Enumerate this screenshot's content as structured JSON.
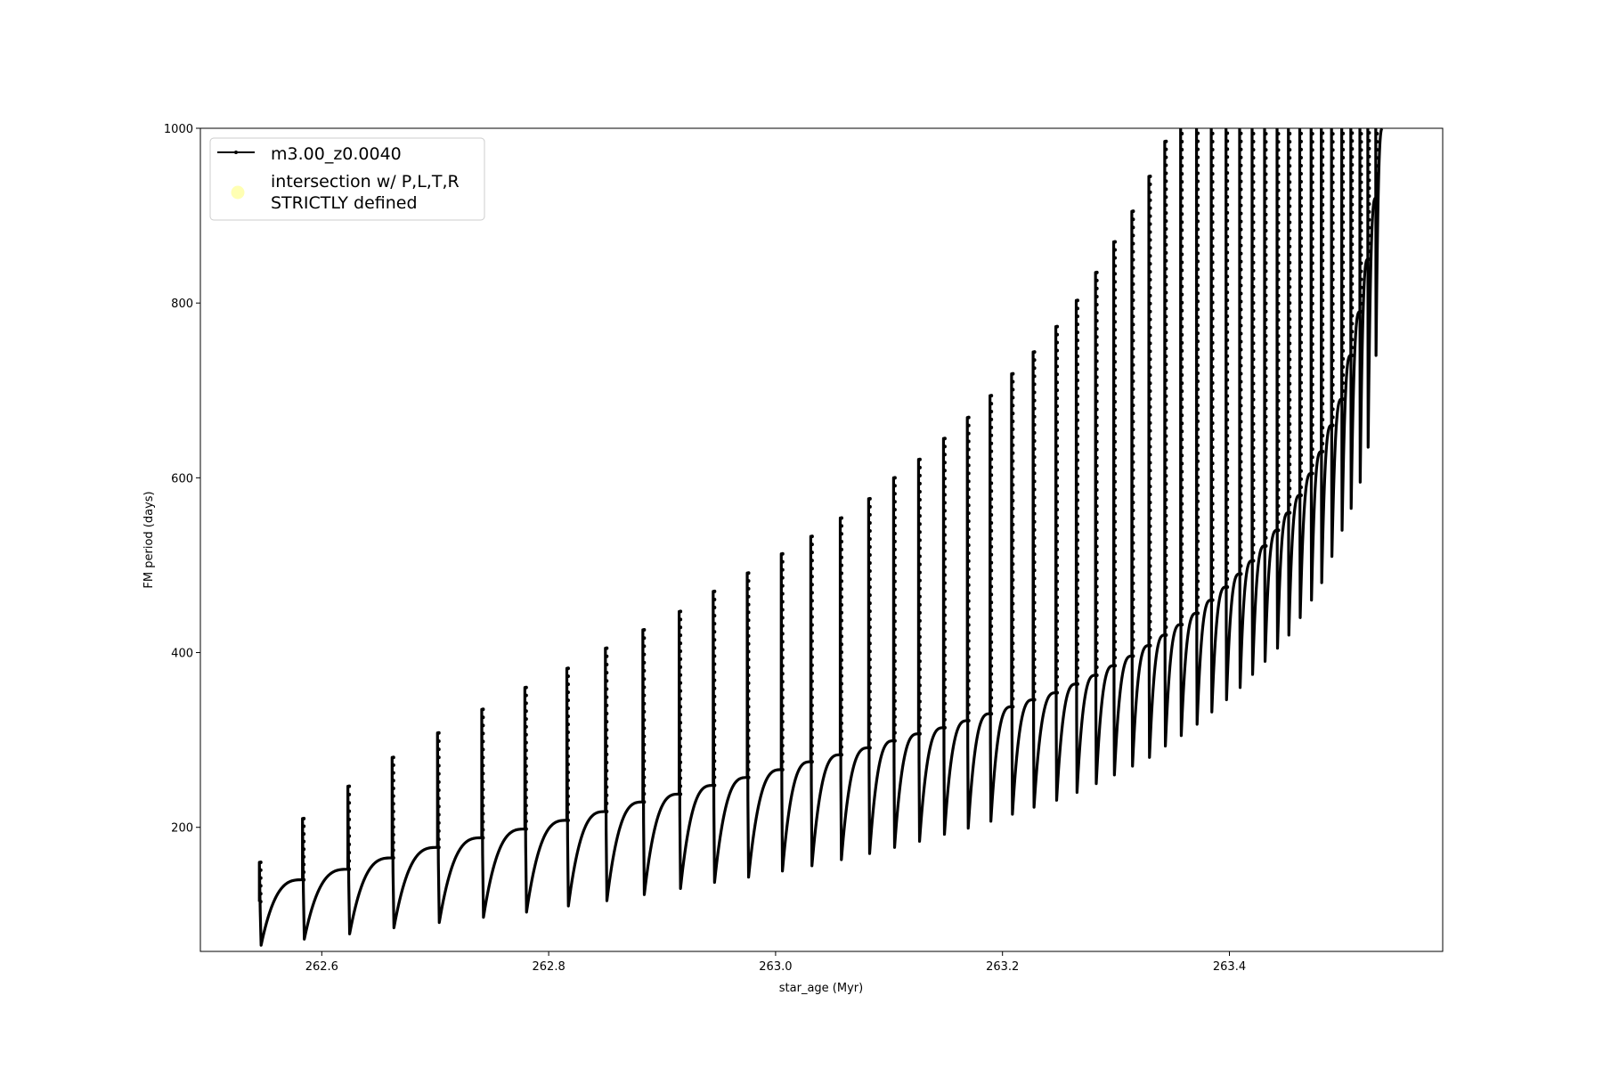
{
  "chart_data": {
    "type": "line",
    "xlabel": "star_age (Myr)",
    "ylabel": "FM period (days)",
    "xlim": [
      262.493,
      263.588
    ],
    "ylim": [
      58,
      1000
    ],
    "xticks": [
      262.6,
      262.8,
      263.0,
      263.2,
      263.4
    ],
    "xtick_labels": [
      "262.6",
      "262.8",
      "263.0",
      "263.2",
      "263.4"
    ],
    "yticks": [
      200,
      400,
      600,
      800,
      1000
    ],
    "ytick_labels": [
      "200",
      "400",
      "600",
      "800",
      "1000"
    ],
    "grid": false,
    "legend": {
      "placement": "top-left",
      "entries": [
        {
          "label": "m3.00_z0.0040",
          "color": "#000000",
          "marker": "line-with-dot"
        },
        {
          "label": "intersection w/ P,L,T,R\nSTRICTLY defined",
          "color": "#ffffb3",
          "marker": "circle"
        }
      ]
    },
    "series": [
      {
        "name": "m3.00_z0.0040",
        "color": "#000000",
        "cycles": {
          "spike_age": [
            262.545,
            262.583,
            262.623,
            262.662,
            262.702,
            262.741,
            262.779,
            262.816,
            262.85,
            262.883,
            262.915,
            262.945,
            262.975,
            263.005,
            263.031,
            263.057,
            263.082,
            263.104,
            263.126,
            263.148,
            263.169,
            263.189,
            263.208,
            263.227,
            263.247,
            263.265,
            263.282,
            263.298,
            263.314,
            263.329,
            263.343,
            263.357,
            263.371,
            263.384,
            263.397,
            263.409,
            263.42,
            263.431,
            263.442,
            263.452,
            263.462,
            263.472,
            263.481,
            263.49,
            263.499,
            263.507,
            263.515,
            263.522,
            263.529
          ],
          "spike_peak": [
            160,
            210,
            247,
            280,
            308,
            335,
            360,
            382,
            405,
            426,
            447,
            470,
            491,
            513,
            533,
            554,
            576,
            600,
            621,
            645,
            669,
            694,
            719,
            744,
            773,
            803,
            835,
            870,
            905,
            945,
            985,
            1000,
            1000,
            1000,
            1000,
            1000,
            1000,
            1000,
            1000,
            1000,
            1000,
            1000,
            1000,
            1000,
            1000,
            1000,
            1000,
            1000,
            1000
          ],
          "minimum": [
            65,
            72,
            78,
            85,
            91,
            97,
            103,
            110,
            116,
            123,
            130,
            137,
            143,
            150,
            156,
            163,
            170,
            177,
            184,
            192,
            199,
            207,
            215,
            223,
            231,
            240,
            250,
            260,
            270,
            280,
            293,
            305,
            318,
            332,
            346,
            360,
            375,
            390,
            405,
            420,
            440,
            460,
            480,
            510,
            540,
            565,
            595,
            635,
            740
          ],
          "plateau": [
            140,
            152,
            165,
            177,
            188,
            198,
            208,
            218,
            229,
            238,
            248,
            257,
            266,
            275,
            283,
            291,
            299,
            307,
            314,
            322,
            330,
            338,
            346,
            354,
            364,
            374,
            385,
            396,
            408,
            420,
            432,
            445,
            460,
            475,
            490,
            505,
            522,
            540,
            560,
            580,
            605,
            630,
            660,
            690,
            740,
            790,
            850,
            920,
            1000
          ]
        }
      }
    ]
  }
}
